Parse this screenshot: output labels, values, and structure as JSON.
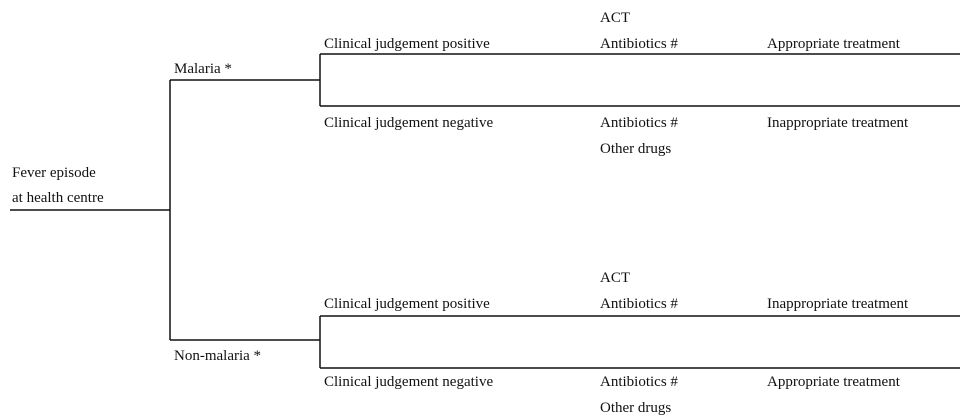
{
  "root": {
    "lines": [
      "Fever episode",
      "at health centre"
    ]
  },
  "branches": [
    {
      "label": "Malaria *",
      "outcomes": [
        {
          "judgement": "Clinical judgement positive",
          "drugs": [
            "ACT",
            "Antibiotics #"
          ],
          "treatment": "Appropriate treatment"
        },
        {
          "judgement": "Clinical judgement negative",
          "drugs": [
            "Antibiotics #",
            "Other drugs"
          ],
          "treatment": "Inappropriate treatment"
        }
      ]
    },
    {
      "label": "Non-malaria *",
      "outcomes": [
        {
          "judgement": "Clinical judgement positive",
          "drugs": [
            "ACT",
            "Antibiotics #"
          ],
          "treatment": "Inappropriate treatment"
        },
        {
          "judgement": "Clinical judgement negative",
          "drugs": [
            "Antibiotics #",
            "Other drugs"
          ],
          "treatment": "Appropriate treatment"
        }
      ]
    }
  ]
}
